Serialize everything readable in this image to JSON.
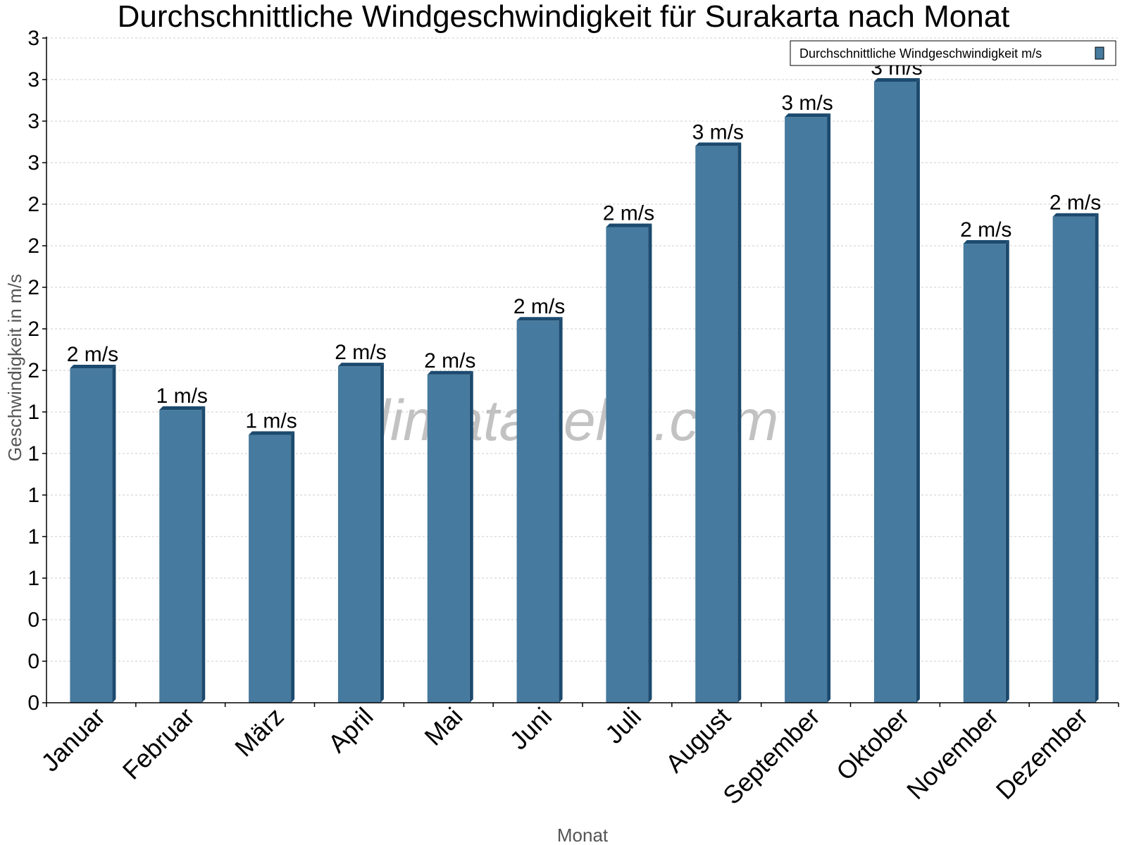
{
  "chart_data": {
    "type": "bar",
    "title": "Durchschnittliche Windgeschwindigkeit für Surakarta nach Monat",
    "xlabel": "Monat",
    "ylabel": "Geschwindigkeit in m/s",
    "categories": [
      "Januar",
      "Februar",
      "März",
      "April",
      "Mai",
      "Juni",
      "Juli",
      "August",
      "September",
      "Oktober",
      "November",
      "Dezember"
    ],
    "series": [
      {
        "name": "Durchschnittliche Windgeschwindigkeit m/s",
        "values": [
          1.61,
          1.41,
          1.29,
          1.62,
          1.58,
          1.84,
          2.29,
          2.68,
          2.82,
          2.99,
          2.21,
          2.34
        ],
        "labels": [
          "2 m/s",
          "1 m/s",
          "1 m/s",
          "2 m/s",
          "2 m/s",
          "2 m/s",
          "2 m/s",
          "3 m/s",
          "3 m/s",
          "3 m/s",
          "2 m/s",
          "2 m/s"
        ],
        "color": "#467a9e",
        "edge_color": "#1c4a6e"
      }
    ],
    "ylim": [
      0,
      3.2
    ],
    "yticks": [
      0,
      0.2,
      0.4,
      0.6,
      0.8,
      1.0,
      1.2,
      1.4,
      1.6,
      1.8,
      2.0,
      2.2,
      2.4,
      2.6,
      2.8,
      3.0,
      3.2
    ],
    "ytick_labels": [
      "0",
      "0",
      "0",
      "1",
      "1",
      "1",
      "1",
      "1",
      "2",
      "2",
      "2",
      "2",
      "2",
      "3",
      "3",
      "3",
      "3"
    ],
    "grid": true,
    "legend": "top-right",
    "watermark": "klimatabelle.com"
  }
}
